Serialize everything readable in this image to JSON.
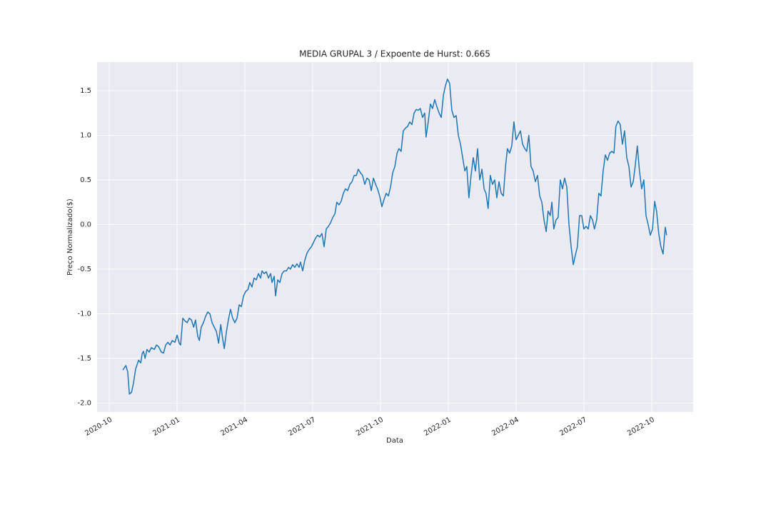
{
  "chart_data": {
    "type": "line",
    "title": "MEDIA GRUPAL 3 / Expoente de Hurst: 0.665",
    "x_label": "Data",
    "y_label": "Preço Normalizado($)",
    "color": "#1f77b4",
    "grid": true,
    "xlim": [
      2020.705,
      2022.903
    ],
    "ylim": [
      -2.1,
      1.82
    ],
    "xticks": [
      {
        "value": 2020.75,
        "label": "2020-10"
      },
      {
        "value": 2021.0,
        "label": "2021-01"
      },
      {
        "value": 2021.25,
        "label": "2021-04"
      },
      {
        "value": 2021.5,
        "label": "2021-07"
      },
      {
        "value": 2021.75,
        "label": "2021-10"
      },
      {
        "value": 2022.0,
        "label": "2022-01"
      },
      {
        "value": 2022.25,
        "label": "2022-04"
      },
      {
        "value": 2022.5,
        "label": "2022-07"
      },
      {
        "value": 2022.75,
        "label": "2022-10"
      }
    ],
    "yticks": [
      {
        "value": -2.0,
        "label": "-2.0"
      },
      -1.5,
      {
        "value": -1.0,
        "label": "-1.0"
      },
      -0.5,
      {
        "value": 0.0,
        "label": "0.0"
      },
      0.5,
      {
        "value": 1.0,
        "label": "1.0"
      },
      1.5
    ],
    "x": [
      2020.8,
      2020.811,
      2020.818,
      2020.824,
      2020.832,
      2020.839,
      2020.847,
      2020.858,
      2020.866,
      2020.871,
      2020.876,
      2020.882,
      2020.889,
      2020.897,
      2020.905,
      2020.916,
      2020.924,
      2020.932,
      2020.942,
      2020.95,
      2020.958,
      2020.966,
      2020.974,
      2020.982,
      2020.992,
      2021.0,
      2021.008,
      2021.013,
      2021.021,
      2021.029,
      2021.037,
      2021.045,
      2021.053,
      2021.061,
      2021.068,
      2021.076,
      2021.082,
      2021.089,
      2021.097,
      2021.105,
      2021.113,
      2021.121,
      2021.129,
      2021.137,
      2021.145,
      2021.153,
      2021.161,
      2021.168,
      2021.174,
      2021.182,
      2021.189,
      2021.197,
      2021.205,
      2021.213,
      2021.221,
      2021.229,
      2021.237,
      2021.245,
      2021.253,
      2021.261,
      2021.268,
      2021.276,
      2021.284,
      2021.292,
      2021.3,
      2021.308,
      2021.313,
      2021.321,
      2021.329,
      2021.337,
      2021.345,
      2021.35,
      2021.358,
      2021.363,
      2021.371,
      2021.379,
      2021.387,
      2021.395,
      2021.403,
      2021.411,
      2021.418,
      2021.426,
      2021.434,
      2021.442,
      2021.45,
      2021.455,
      2021.463,
      2021.471,
      2021.479,
      2021.487,
      2021.495,
      2021.503,
      2021.511,
      2021.518,
      2021.526,
      2021.534,
      2021.542,
      2021.55,
      2021.558,
      2021.566,
      2021.574,
      2021.582,
      2021.589,
      2021.597,
      2021.605,
      2021.613,
      2021.621,
      2021.629,
      2021.637,
      2021.645,
      2021.653,
      2021.661,
      2021.668,
      2021.676,
      2021.684,
      2021.692,
      2021.7,
      2021.708,
      2021.716,
      2021.724,
      2021.732,
      2021.739,
      2021.747,
      2021.755,
      2021.763,
      2021.771,
      2021.779,
      2021.787,
      2021.795,
      2021.803,
      2021.811,
      2021.818,
      2021.826,
      2021.834,
      2021.842,
      2021.85,
      2021.858,
      2021.866,
      2021.874,
      2021.882,
      2021.889,
      2021.897,
      2021.905,
      2021.913,
      2021.918,
      2021.926,
      2021.934,
      2021.942,
      2021.95,
      2021.958,
      2021.966,
      2021.974,
      2021.982,
      2021.989,
      2021.997,
      2022.005,
      2022.013,
      2022.021,
      2022.029,
      2022.037,
      2022.045,
      2022.053,
      2022.061,
      2022.068,
      2022.076,
      2022.084,
      2022.092,
      2022.1,
      2022.108,
      2022.116,
      2022.124,
      2022.132,
      2022.139,
      2022.147,
      2022.155,
      2022.163,
      2022.171,
      2022.179,
      2022.187,
      2022.195,
      2022.203,
      2022.211,
      2022.218,
      2022.226,
      2022.234,
      2022.242,
      2022.25,
      2022.258,
      2022.266,
      2022.274,
      2022.282,
      2022.289,
      2022.297,
      2022.305,
      2022.313,
      2022.321,
      2022.329,
      2022.337,
      2022.345,
      2022.353,
      2022.361,
      2022.368,
      2022.376,
      2022.382,
      2022.389,
      2022.397,
      2022.405,
      2022.413,
      2022.421,
      2022.429,
      2022.437,
      2022.445,
      2022.453,
      2022.461,
      2022.468,
      2022.476,
      2022.484,
      2022.492,
      2022.5,
      2022.508,
      2022.516,
      2022.524,
      2022.532,
      2022.539,
      2022.547,
      2022.555,
      2022.563,
      2022.571,
      2022.579,
      2022.587,
      2022.595,
      2022.603,
      2022.611,
      2022.618,
      2022.626,
      2022.634,
      2022.642,
      2022.65,
      2022.658,
      2022.666,
      2022.674,
      2022.682,
      2022.689,
      2022.697,
      2022.705,
      2022.713,
      2022.721,
      2022.729,
      2022.737,
      2022.745,
      2022.753,
      2022.761,
      2022.768,
      2022.776,
      2022.784,
      2022.792,
      2022.8,
      2022.805
    ],
    "values": [
      -1.63,
      -1.58,
      -1.65,
      -1.9,
      -1.88,
      -1.78,
      -1.62,
      -1.52,
      -1.55,
      -1.45,
      -1.42,
      -1.5,
      -1.4,
      -1.43,
      -1.38,
      -1.4,
      -1.35,
      -1.37,
      -1.43,
      -1.44,
      -1.35,
      -1.32,
      -1.35,
      -1.3,
      -1.32,
      -1.24,
      -1.33,
      -1.35,
      -1.05,
      -1.08,
      -1.1,
      -1.05,
      -1.07,
      -1.15,
      -1.07,
      -1.25,
      -1.3,
      -1.15,
      -1.1,
      -1.03,
      -0.98,
      -1.0,
      -1.1,
      -1.15,
      -1.2,
      -1.33,
      -1.12,
      -1.28,
      -1.39,
      -1.2,
      -1.07,
      -0.95,
      -1.05,
      -1.1,
      -1.05,
      -0.9,
      -0.92,
      -0.8,
      -0.75,
      -0.73,
      -0.65,
      -0.7,
      -0.6,
      -0.62,
      -0.55,
      -0.6,
      -0.52,
      -0.55,
      -0.53,
      -0.6,
      -0.55,
      -0.65,
      -0.58,
      -0.8,
      -0.62,
      -0.65,
      -0.55,
      -0.52,
      -0.52,
      -0.48,
      -0.5,
      -0.45,
      -0.48,
      -0.44,
      -0.48,
      -0.42,
      -0.52,
      -0.4,
      -0.32,
      -0.28,
      -0.25,
      -0.2,
      -0.15,
      -0.12,
      -0.14,
      -0.1,
      -0.25,
      -0.05,
      -0.02,
      0.02,
      0.08,
      0.12,
      0.25,
      0.22,
      0.26,
      0.35,
      0.4,
      0.38,
      0.45,
      0.48,
      0.55,
      0.55,
      0.62,
      0.58,
      0.55,
      0.45,
      0.52,
      0.5,
      0.38,
      0.52,
      0.45,
      0.4,
      0.32,
      0.2,
      0.28,
      0.35,
      0.32,
      0.42,
      0.58,
      0.65,
      0.8,
      0.85,
      0.82,
      1.05,
      1.08,
      1.1,
      1.15,
      1.12,
      1.25,
      1.29,
      1.28,
      1.3,
      1.2,
      1.25,
      0.98,
      1.15,
      1.35,
      1.3,
      1.4,
      1.32,
      1.25,
      1.2,
      1.45,
      1.55,
      1.63,
      1.58,
      1.28,
      1.2,
      1.22,
      1.0,
      0.9,
      0.75,
      0.6,
      0.65,
      0.3,
      0.55,
      0.75,
      0.6,
      0.85,
      0.5,
      0.62,
      0.4,
      0.35,
      0.18,
      0.55,
      0.45,
      0.5,
      0.3,
      0.48,
      0.35,
      0.32,
      0.65,
      0.85,
      0.8,
      0.88,
      1.15,
      0.95,
      1.0,
      1.05,
      0.9,
      0.85,
      0.82,
      1.0,
      0.65,
      0.6,
      0.48,
      0.55,
      0.32,
      0.25,
      0.05,
      -0.08,
      0.15,
      0.1,
      0.25,
      -0.05,
      0.05,
      0.08,
      0.5,
      0.4,
      0.52,
      0.42,
      0.0,
      -0.25,
      -0.45,
      -0.35,
      -0.25,
      0.1,
      0.1,
      -0.05,
      -0.02,
      -0.05,
      0.1,
      0.05,
      -0.05,
      0.05,
      0.35,
      0.32,
      0.6,
      0.78,
      0.72,
      0.8,
      0.82,
      0.8,
      1.1,
      1.16,
      1.12,
      0.9,
      1.05,
      0.75,
      0.65,
      0.42,
      0.48,
      0.65,
      0.88,
      0.6,
      0.4,
      0.5,
      0.1,
      0.0,
      -0.12,
      -0.05,
      0.26,
      0.15,
      -0.1,
      -0.25,
      -0.33,
      -0.03,
      -0.12
    ]
  }
}
